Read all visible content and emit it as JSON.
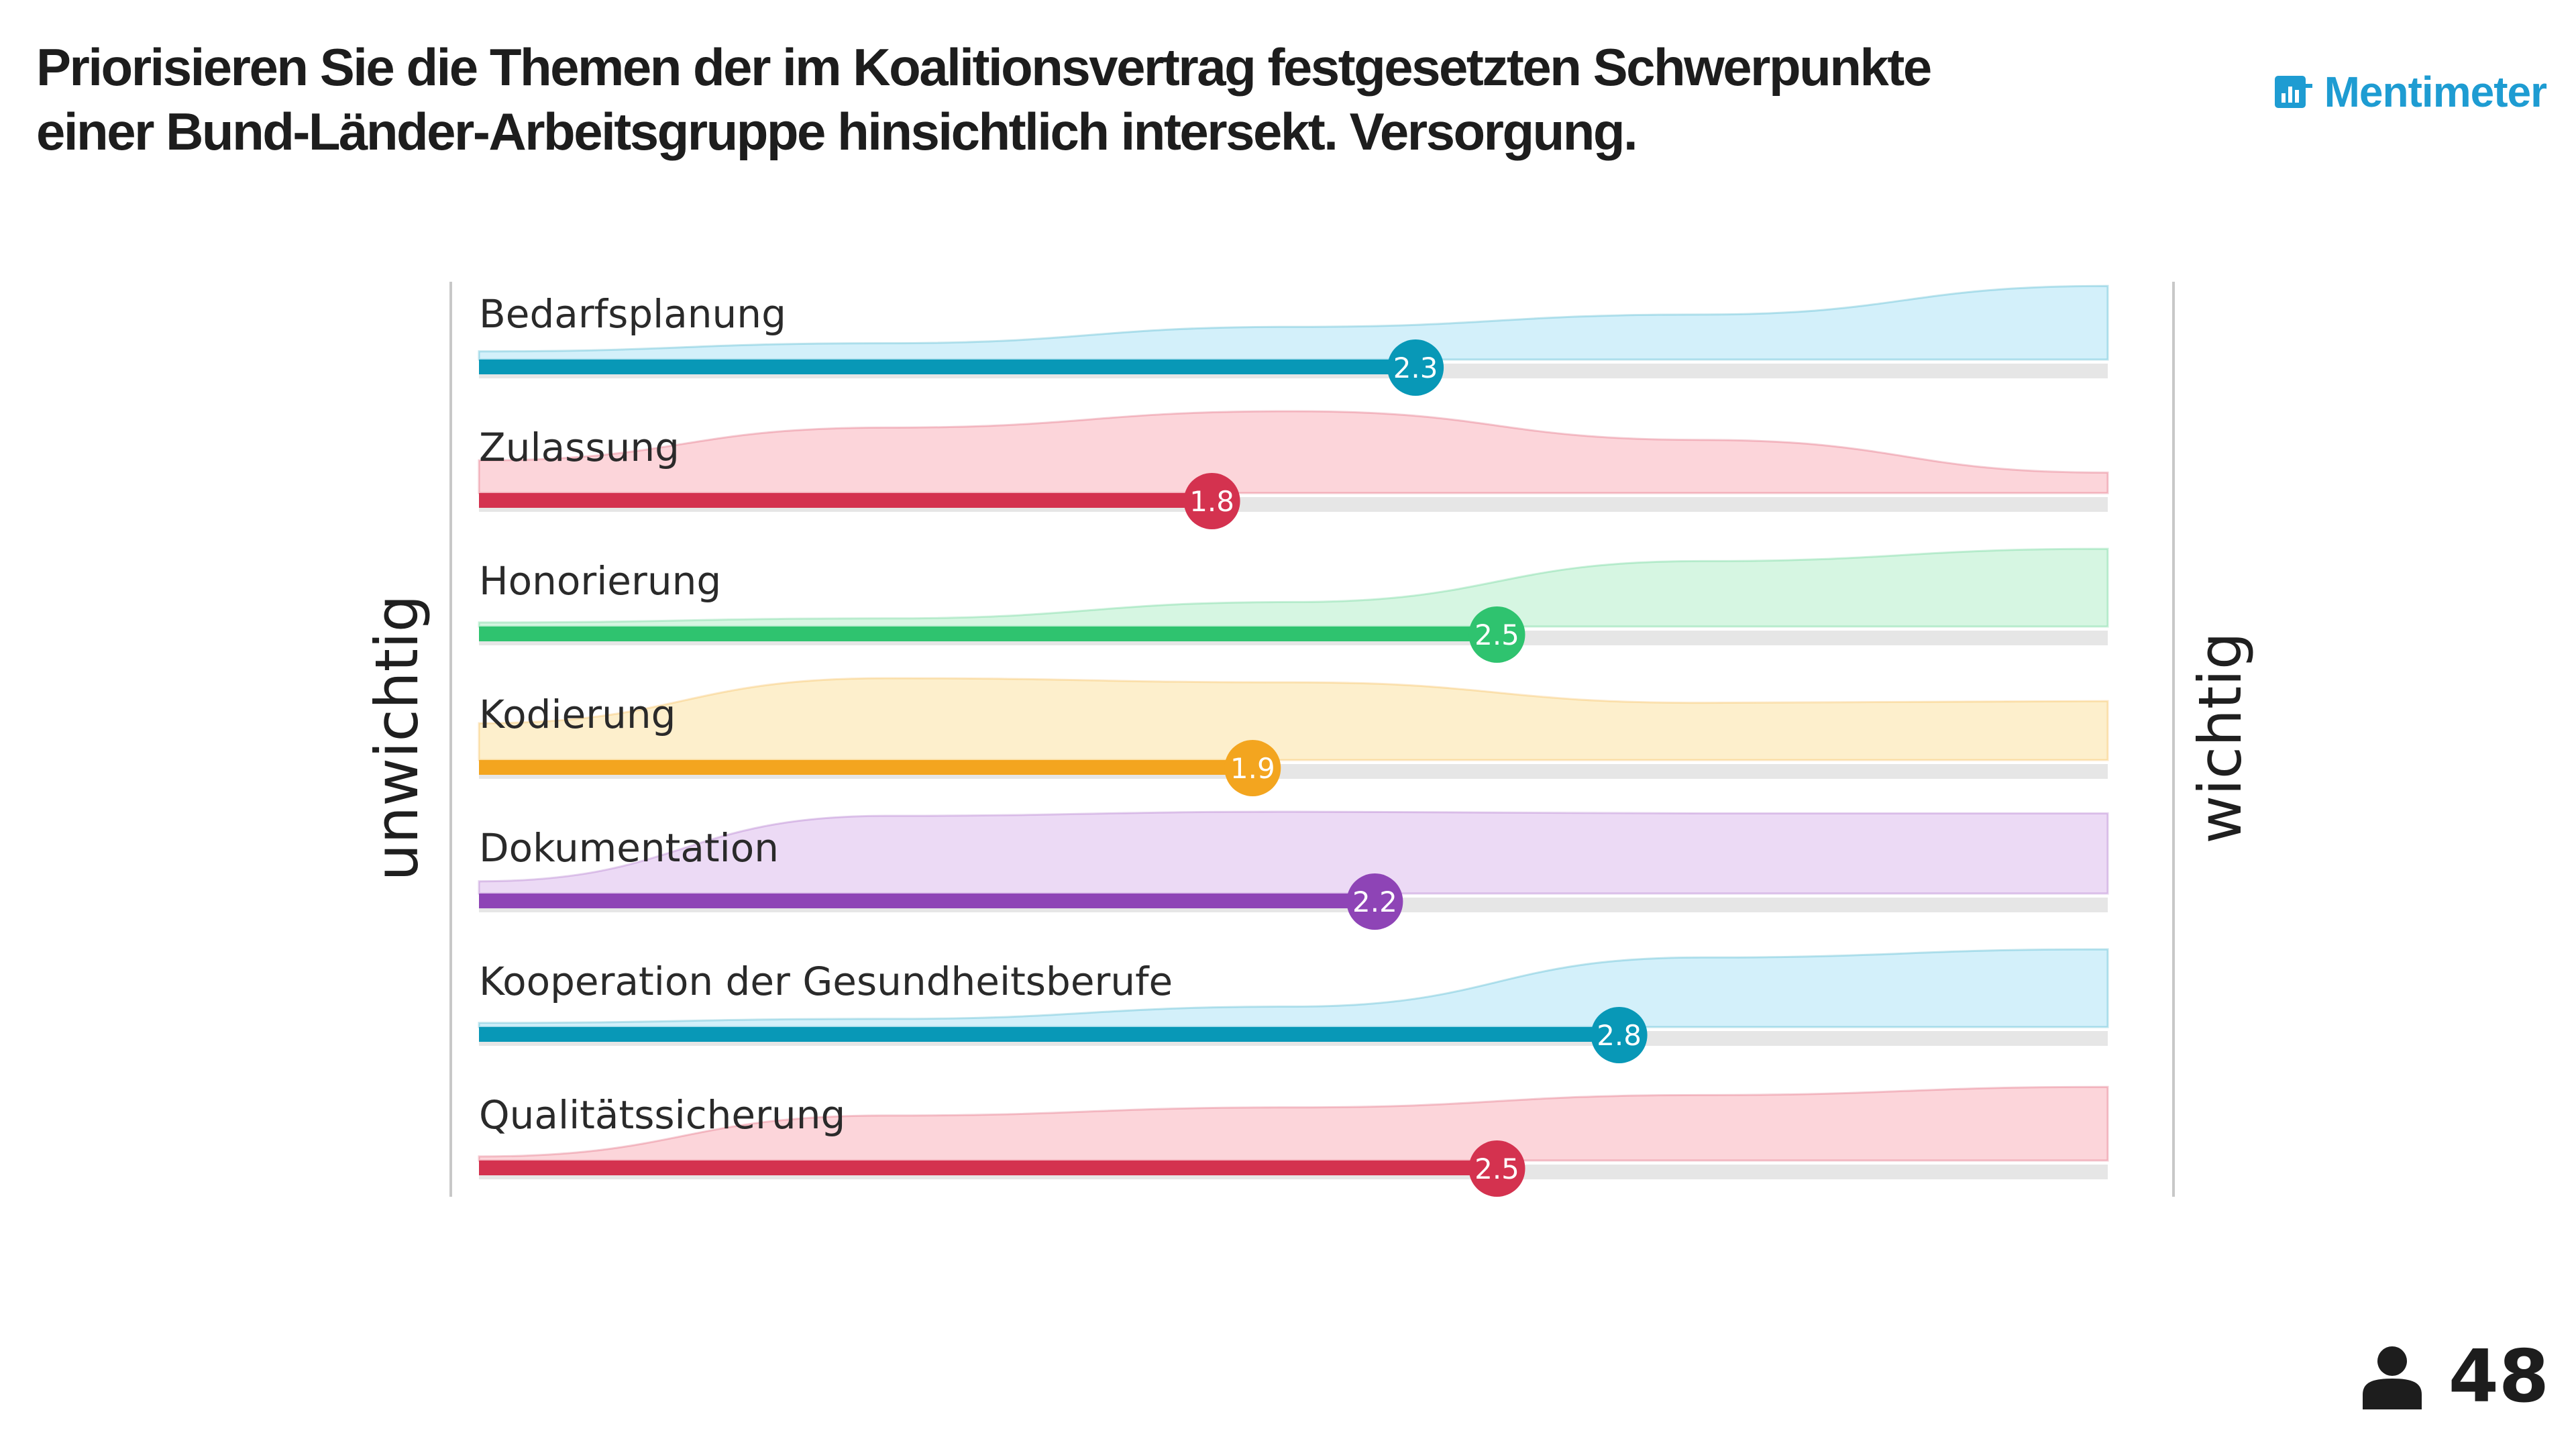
{
  "title": "Priorisieren Sie die Themen der im Koalitionsvertrag festgesetzten Schwerpunkte einer Bund-Länder-Arbeitsgruppe hinsichtlich intersekt. Versorgung.",
  "brand": {
    "name": "Mentimeter",
    "icon": "mentimeter-logo-icon",
    "color": "#1e9cd2"
  },
  "participants": {
    "icon": "person-icon",
    "count": "48"
  },
  "chart_data": {
    "type": "bar",
    "scale_min_label": "unwichtig",
    "scale_max_label": "wichtig",
    "xlim": [
      0,
      4
    ],
    "grid": false,
    "categories": [
      "Bedarfsplanung",
      "Zulassung",
      "Honorierung",
      "Kodierung",
      "Dokumentation",
      "Kooperation der Gesundheitsberufe",
      "Qualitätssicherung"
    ],
    "values": [
      2.3,
      1.8,
      2.5,
      1.9,
      2.2,
      2.8,
      2.5
    ],
    "value_labels": [
      "2.3",
      "1.8",
      "2.5",
      "1.9",
      "2.2",
      "2.8",
      "2.5"
    ],
    "colors": [
      "#0898b7",
      "#d4324f",
      "#2fc36f",
      "#f3a51f",
      "#8e44b6",
      "#0898b7",
      "#d4324f"
    ],
    "fill_colors": [
      "#d3f0fa",
      "#fcd5da",
      "#d6f6e2",
      "#fdefcc",
      "#ecdaf5",
      "#d3f0fa",
      "#fcd5da"
    ],
    "distribution_curves": [
      [
        0.1,
        0.2,
        0.4,
        0.55,
        0.9
      ],
      [
        0.4,
        0.8,
        1.0,
        0.65,
        0.25
      ],
      [
        0.05,
        0.1,
        0.3,
        0.8,
        0.95
      ],
      [
        0.45,
        1.0,
        0.95,
        0.7,
        0.72
      ],
      [
        0.15,
        0.95,
        1.0,
        0.98,
        0.98
      ],
      [
        0.05,
        0.1,
        0.25,
        0.85,
        0.95
      ],
      [
        0.05,
        0.55,
        0.65,
        0.8,
        0.9
      ]
    ]
  }
}
